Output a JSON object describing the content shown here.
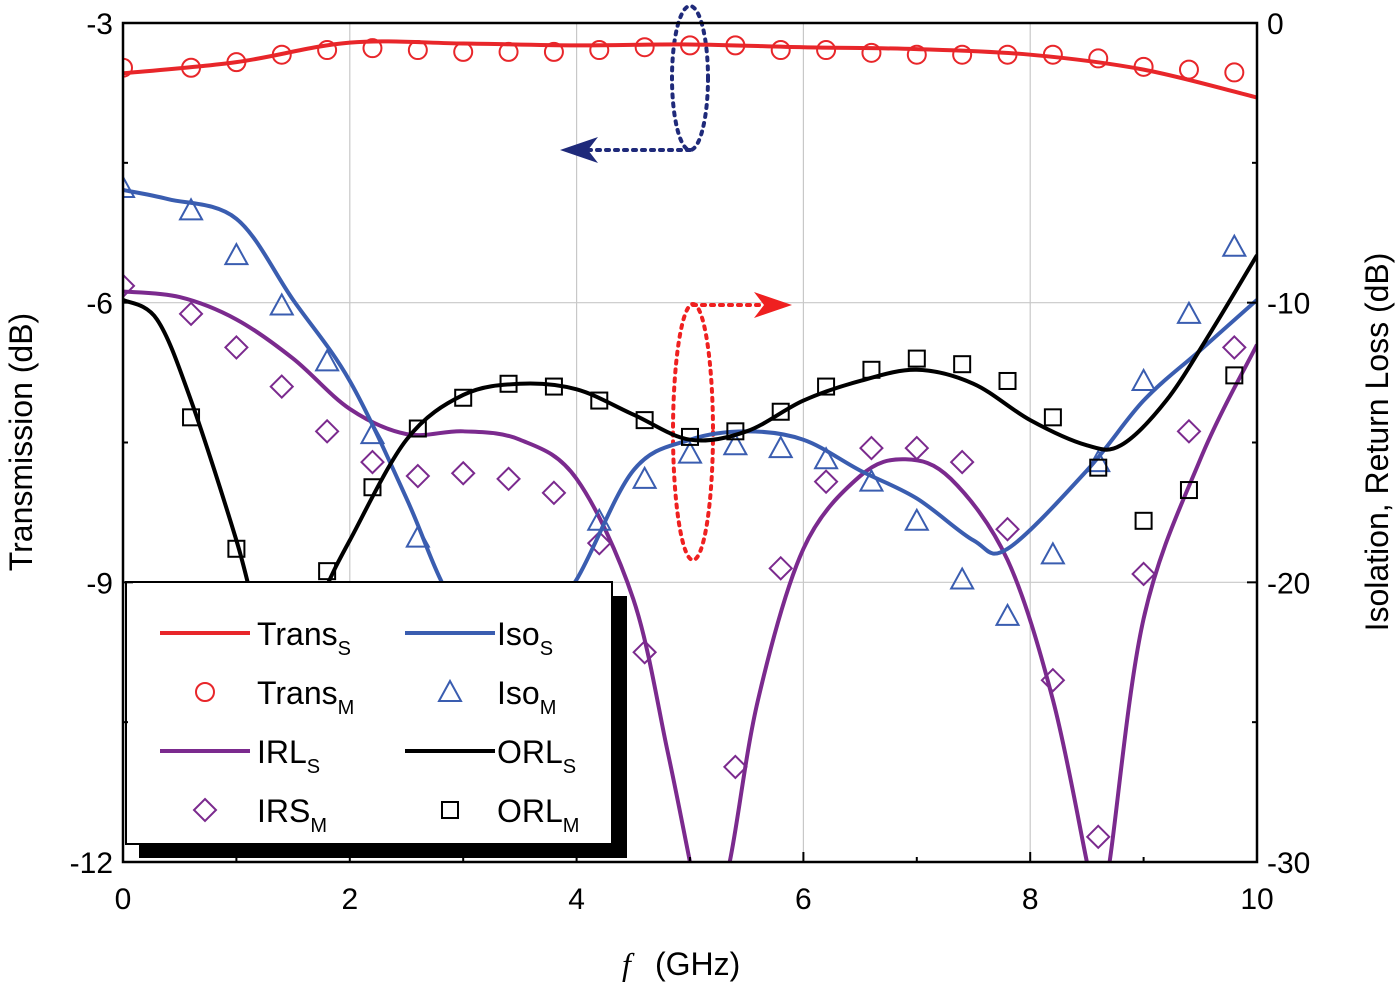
{
  "chart_data": {
    "type": "line",
    "xlabel_italic": "f",
    "xlabel": "(GHz)",
    "ylabel_left": "Transmission (dB)",
    "ylabel_right": "Isolation, Return Loss (dB)",
    "xlim": [
      0,
      10
    ],
    "ylim_left": [
      -12,
      -3
    ],
    "ylim_right": [
      -30,
      0
    ],
    "x_ticks": [
      "0",
      "2",
      "4",
      "6",
      "8",
      "10"
    ],
    "y_left_ticks": [
      "-3",
      "-6",
      "-9",
      "-12"
    ],
    "y_right_ticks": [
      "0",
      "-10",
      "-20",
      "-30"
    ],
    "grid": true,
    "legend_placement": "bottom-left",
    "series": [
      {
        "name": "Trans",
        "sub": "S",
        "axis": "left",
        "kind": "line",
        "color": "#e8262a",
        "x": [
          0,
          1,
          2,
          3,
          4,
          5,
          6,
          7,
          8,
          9,
          10
        ],
        "y": [
          -3.54,
          -3.42,
          -3.21,
          -3.22,
          -3.24,
          -3.23,
          -3.26,
          -3.28,
          -3.34,
          -3.5,
          -3.8
        ]
      },
      {
        "name": "Trans",
        "sub": "M",
        "axis": "left",
        "kind": "circle",
        "color": "#e8262a",
        "x": [
          0,
          0.6,
          1.0,
          1.4,
          1.8,
          2.2,
          2.6,
          3.0,
          3.4,
          3.8,
          4.2,
          4.6,
          5.0,
          5.4,
          5.8,
          6.2,
          6.6,
          7.0,
          7.4,
          7.8,
          8.2,
          8.6,
          9.0,
          9.4,
          9.8
        ],
        "y": [
          -3.48,
          -3.48,
          -3.42,
          -3.34,
          -3.29,
          -3.27,
          -3.29,
          -3.31,
          -3.31,
          -3.31,
          -3.29,
          -3.26,
          -3.24,
          -3.24,
          -3.29,
          -3.29,
          -3.32,
          -3.34,
          -3.34,
          -3.34,
          -3.34,
          -3.38,
          -3.47,
          -3.5,
          -3.53
        ]
      },
      {
        "name": "IRL",
        "sub": "S",
        "axis": "right",
        "kind": "line",
        "color": "#7b2a8e",
        "x": [
          0,
          0.5,
          1,
          1.5,
          2,
          2.5,
          3,
          3.5,
          4,
          4.5,
          4.8,
          5.0,
          5.15,
          5.35,
          5.6,
          6,
          6.5,
          6.9,
          7.3,
          7.8,
          8.2,
          8.5,
          8.6,
          8.7,
          9,
          9.5,
          10
        ],
        "y": [
          -9.6,
          -9.8,
          -10.6,
          -12.0,
          -13.8,
          -14.7,
          -14.6,
          -14.9,
          -16.3,
          -20.6,
          -26,
          -30,
          -33,
          -30,
          -24.2,
          -18.8,
          -16.2,
          -15.6,
          -16.3,
          -19.2,
          -24.2,
          -30,
          -32,
          -30,
          -21.3,
          -15.6,
          -11.5
        ]
      },
      {
        "name": "IRS",
        "sub": "M",
        "axis": "right",
        "kind": "diamond",
        "color": "#7b2a8e",
        "x": [
          0,
          0.6,
          1.0,
          1.4,
          1.8,
          2.2,
          2.6,
          3.0,
          3.4,
          3.8,
          4.2,
          4.6,
          5.4,
          5.8,
          6.2,
          6.6,
          7.0,
          7.4,
          7.8,
          8.2,
          8.6,
          9.0,
          9.4,
          9.8
        ],
        "y": [
          -9.4,
          -10.4,
          -11.6,
          -13.0,
          -14.6,
          -15.7,
          -16.2,
          -16.1,
          -16.3,
          -16.8,
          -18.6,
          -22.5,
          -26.6,
          -19.5,
          -16.4,
          -15.2,
          -15.2,
          -15.7,
          -18.1,
          -23.5,
          -29.1,
          -19.7,
          -14.6,
          -11.6
        ]
      },
      {
        "name": "Iso",
        "sub": "S",
        "axis": "right",
        "kind": "line",
        "color": "#3a5db0",
        "x": [
          0,
          0.4,
          1,
          1.5,
          2,
          2.5,
          2.8,
          3.2,
          3.6,
          4,
          4.5,
          5,
          5.5,
          6,
          6.5,
          7,
          7.5,
          7.8,
          8.5,
          9,
          9.5,
          10
        ],
        "y": [
          -5.97,
          -6.3,
          -7.0,
          -9.9,
          -12.8,
          -17,
          -19.9,
          -23,
          -22,
          -19.9,
          -16,
          -14.9,
          -14.6,
          -14.9,
          -16,
          -17,
          -18.5,
          -18.8,
          -16,
          -13.5,
          -11.7,
          -9.9
        ]
      },
      {
        "name": "Iso",
        "sub": "M",
        "axis": "right",
        "kind": "triangle",
        "color": "#3a5db0",
        "x": [
          0,
          0.6,
          1.0,
          1.4,
          1.8,
          2.2,
          2.6,
          4.2,
          4.6,
          5.0,
          5.4,
          5.8,
          6.2,
          6.6,
          7.0,
          7.4,
          7.8,
          8.2,
          8.6,
          9.0,
          9.4,
          9.8
        ],
        "y": [
          -5.9,
          -6.7,
          -8.3,
          -10.1,
          -12.1,
          -14.7,
          -18.4,
          -17.8,
          -16.3,
          -15.4,
          -15.1,
          -15.2,
          -15.6,
          -16.4,
          -17.8,
          -19.9,
          -21.2,
          -19.0,
          -15.7,
          -12.8,
          -10.4,
          -8.0
        ]
      },
      {
        "name": "ORL",
        "sub": "S",
        "axis": "right",
        "kind": "line",
        "color": "#000000",
        "x": [
          0,
          0.3,
          0.6,
          1.0,
          1.2,
          1.4,
          1.6,
          1.8,
          2.0,
          2.5,
          3,
          3.5,
          4,
          4.5,
          5,
          5.5,
          6,
          6.5,
          7,
          7.5,
          8,
          8.5,
          8.8,
          9.2,
          9.6,
          10
        ],
        "y": [
          -9.9,
          -10.6,
          -13.5,
          -18.5,
          -21.5,
          -23,
          -22,
          -20.1,
          -18.5,
          -14.9,
          -13.3,
          -12.9,
          -13.1,
          -14.0,
          -14.9,
          -14.6,
          -13.5,
          -12.8,
          -12.4,
          -12.9,
          -14.2,
          -15.1,
          -15.1,
          -13.5,
          -11.0,
          -8.3
        ]
      },
      {
        "name": "ORL",
        "sub": "M",
        "axis": "right",
        "kind": "square",
        "color": "#000000",
        "x": [
          0.6,
          1.0,
          1.8,
          2.2,
          2.6,
          3.0,
          3.4,
          3.8,
          4.2,
          4.6,
          5.0,
          5.4,
          5.8,
          6.2,
          6.6,
          7.0,
          7.4,
          7.8,
          8.2,
          8.6,
          9.0,
          9.4,
          9.8
        ],
        "y": [
          -14.1,
          -18.8,
          -19.6,
          -16.6,
          -14.5,
          -13.4,
          -12.9,
          -13.0,
          -13.5,
          -14.2,
          -14.8,
          -14.6,
          -13.9,
          -13.0,
          -12.4,
          -12.0,
          -12.2,
          -12.8,
          -14.1,
          -15.9,
          -17.8,
          -16.7,
          -12.6
        ]
      }
    ],
    "legend_order": [
      0,
      4,
      1,
      5,
      2,
      6,
      3,
      7
    ],
    "annotations": [
      {
        "kind": "ellipse-arrow",
        "points_to": "left axis",
        "color": "#1f2a7a",
        "x": 5.0
      },
      {
        "kind": "ellipse-arrow",
        "points_to": "right axis",
        "color": "#ef2020",
        "x": 5.0
      }
    ]
  }
}
